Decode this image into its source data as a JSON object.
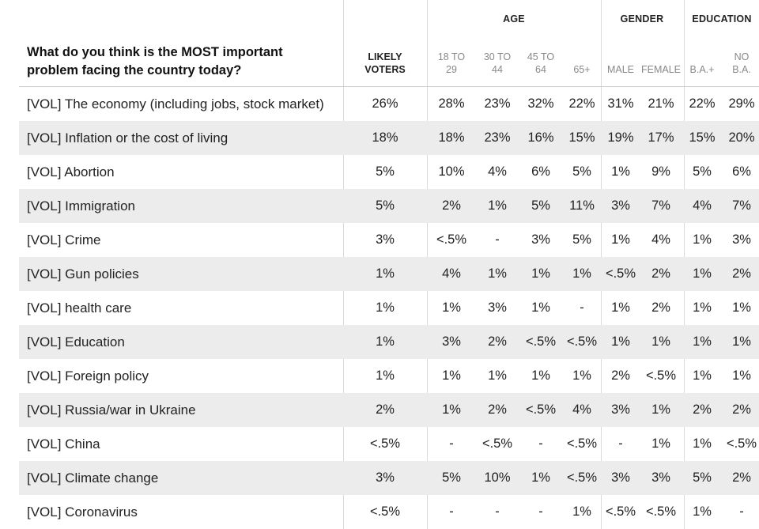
{
  "chart_data": {
    "type": "table",
    "title": "What do you think is the MOST important problem facing the country today?",
    "groups": [
      {
        "label": "AGE",
        "columns": [
          "18 TO 29",
          "30 TO 44",
          "45 TO 64",
          "65+"
        ]
      },
      {
        "label": "GENDER",
        "columns": [
          "MALE",
          "FEMALE"
        ]
      },
      {
        "label": "EDUCATION",
        "columns": [
          "B.A.+",
          "NO B.A."
        ]
      }
    ],
    "columns": [
      "LIKELY VOTERS",
      "18 TO 29",
      "30 TO 44",
      "45 TO 64",
      "65+",
      "MALE",
      "FEMALE",
      "B.A.+",
      "NO B.A."
    ],
    "rows": [
      {
        "label": "[VOL] The economy (including jobs, stock market)",
        "values": [
          "26%",
          "28%",
          "23%",
          "32%",
          "22%",
          "31%",
          "21%",
          "22%",
          "29%"
        ]
      },
      {
        "label": "[VOL] Inflation or the cost of living",
        "values": [
          "18%",
          "18%",
          "23%",
          "16%",
          "15%",
          "19%",
          "17%",
          "15%",
          "20%"
        ]
      },
      {
        "label": "[VOL] Abortion",
        "values": [
          "5%",
          "10%",
          "4%",
          "6%",
          "5%",
          "1%",
          "9%",
          "5%",
          "6%"
        ]
      },
      {
        "label": "[VOL] Immigration",
        "values": [
          "5%",
          "2%",
          "1%",
          "5%",
          "11%",
          "3%",
          "7%",
          "4%",
          "7%"
        ]
      },
      {
        "label": "[VOL] Crime",
        "values": [
          "3%",
          "<.5%",
          "-",
          "3%",
          "5%",
          "1%",
          "4%",
          "1%",
          "3%"
        ]
      },
      {
        "label": "[VOL] Gun policies",
        "values": [
          "1%",
          "4%",
          "1%",
          "1%",
          "1%",
          "<.5%",
          "2%",
          "1%",
          "2%"
        ]
      },
      {
        "label": "[VOL] health care",
        "values": [
          "1%",
          "1%",
          "3%",
          "1%",
          "-",
          "1%",
          "2%",
          "1%",
          "1%"
        ]
      },
      {
        "label": "[VOL] Education",
        "values": [
          "1%",
          "3%",
          "2%",
          "<.5%",
          "<.5%",
          "1%",
          "1%",
          "1%",
          "1%"
        ]
      },
      {
        "label": "[VOL] Foreign policy",
        "values": [
          "1%",
          "1%",
          "1%",
          "1%",
          "1%",
          "2%",
          "<.5%",
          "1%",
          "1%"
        ]
      },
      {
        "label": "[VOL] Russia/war in Ukraine",
        "values": [
          "2%",
          "1%",
          "2%",
          "<.5%",
          "4%",
          "3%",
          "1%",
          "2%",
          "2%"
        ]
      },
      {
        "label": "[VOL] China",
        "values": [
          "<.5%",
          "-",
          "<.5%",
          "-",
          "<.5%",
          "-",
          "1%",
          "1%",
          "<.5%"
        ]
      },
      {
        "label": "[VOL] Climate change",
        "values": [
          "3%",
          "5%",
          "10%",
          "1%",
          "<.5%",
          "3%",
          "3%",
          "5%",
          "2%"
        ]
      },
      {
        "label": "[VOL] Coronavirus",
        "values": [
          "<.5%",
          "-",
          "-",
          "-",
          "1%",
          "<.5%",
          "<.5%",
          "1%",
          "-"
        ]
      }
    ]
  }
}
